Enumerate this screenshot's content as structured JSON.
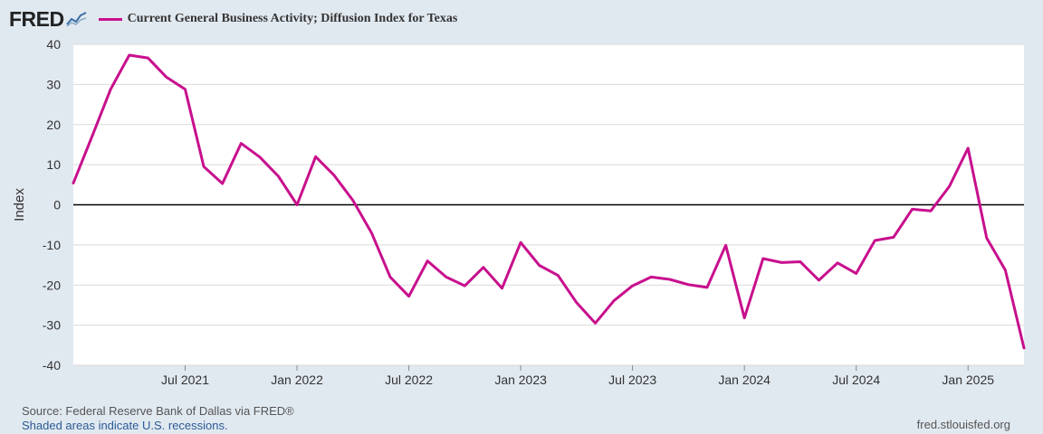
{
  "brand": {
    "logo": "FRED",
    "logo_icon": "line-chart-icon"
  },
  "colors": {
    "series": "#c80f8d",
    "background": "#e1e9f0",
    "plot": "#ffffff",
    "grid": "#d9d9d9",
    "zero_line": "#000000",
    "recession_note": "#2a5a96"
  },
  "chart_data": {
    "type": "line",
    "title": "Current General Business Activity; Diffusion Index for Texas",
    "ylabel": "Index",
    "xlabel": "",
    "ylim": [
      -40,
      40
    ],
    "yticks": [
      40,
      30,
      20,
      10,
      0,
      -10,
      -20,
      -30,
      -40
    ],
    "xticks": [
      {
        "label": "Jul 2021",
        "date": "2021-07"
      },
      {
        "label": "Jan 2022",
        "date": "2022-01"
      },
      {
        "label": "Jul 2022",
        "date": "2022-07"
      },
      {
        "label": "Jan 2023",
        "date": "2023-01"
      },
      {
        "label": "Jul 2023",
        "date": "2023-07"
      },
      {
        "label": "Jan 2024",
        "date": "2024-01"
      },
      {
        "label": "Jul 2024",
        "date": "2024-07"
      },
      {
        "label": "Jan 2025",
        "date": "2025-01"
      }
    ],
    "grid": true,
    "series": [
      {
        "name": "Current General Business Activity; Diffusion Index for Texas",
        "x": [
          "2021-01",
          "2021-02",
          "2021-03",
          "2021-04",
          "2021-05",
          "2021-06",
          "2021-07",
          "2021-08",
          "2021-09",
          "2021-10",
          "2021-11",
          "2021-12",
          "2022-01",
          "2022-02",
          "2022-03",
          "2022-04",
          "2022-05",
          "2022-06",
          "2022-07",
          "2022-08",
          "2022-09",
          "2022-10",
          "2022-11",
          "2022-12",
          "2023-01",
          "2023-02",
          "2023-03",
          "2023-04",
          "2023-05",
          "2023-06",
          "2023-07",
          "2023-08",
          "2023-09",
          "2023-10",
          "2023-11",
          "2023-12",
          "2024-01",
          "2024-02",
          "2024-03",
          "2024-04",
          "2024-05",
          "2024-06",
          "2024-07",
          "2024-08",
          "2024-09",
          "2024-10",
          "2024-11",
          "2024-12",
          "2025-01",
          "2025-02",
          "2025-03",
          "2025-04"
        ],
        "values": [
          5.4,
          17.0,
          28.8,
          37.3,
          36.6,
          31.8,
          28.8,
          9.5,
          5.3,
          15.3,
          11.9,
          7.1,
          0.0,
          12.0,
          7.3,
          1.1,
          -7.0,
          -18.0,
          -22.8,
          -14.0,
          -18.0,
          -20.2,
          -15.6,
          -20.8,
          -9.4,
          -15.1,
          -17.6,
          -24.4,
          -29.5,
          -23.9,
          -20.2,
          -18.0,
          -18.6,
          -19.9,
          -20.6,
          -10.1,
          -28.2,
          -13.4,
          -14.4,
          -14.2,
          -18.8,
          -14.5,
          -17.1,
          -8.9,
          -8.1,
          -1.1,
          -1.5,
          4.6,
          14.1,
          -8.3,
          -16.3,
          -35.7
        ]
      }
    ]
  },
  "footer": {
    "source": "Source: Federal Reserve Bank of Dallas via FRED®",
    "recession_note": "Shaded areas indicate U.S. recessions.",
    "url": "fred.stlouisfed.org"
  }
}
